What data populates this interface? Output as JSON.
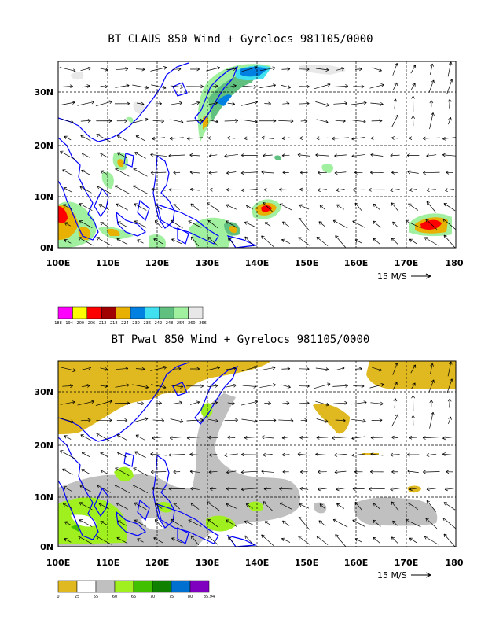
{
  "panel1": {
    "title": "BT CLAUS 850 Wind + Gyrelocs 981105/0000",
    "lat_labels": [
      "30N",
      "20N",
      "10N",
      "0N"
    ],
    "lon_labels": [
      "100E",
      "110E",
      "120E",
      "130E",
      "140E",
      "150E",
      "160E",
      "170E",
      "180"
    ],
    "ref_vector": "15 M/S",
    "colorbar": {
      "labels": [
        "188",
        "194",
        "200",
        "206",
        "212",
        "218",
        "224",
        "230",
        "236",
        "242",
        "248",
        "254",
        "260",
        "266"
      ],
      "colors": [
        "#ff00ff",
        "#ffff00",
        "#ff0000",
        "#a00000",
        "#e8b000",
        "#0080e0",
        "#40e0f0",
        "#60c080",
        "#a0f0a0",
        "#e8e8e8"
      ]
    }
  },
  "panel2": {
    "title": "BT Pwat 850 Wind + Gyrelocs 981105/0000",
    "lat_labels": [
      "30N",
      "20N",
      "10N",
      "0N"
    ],
    "lon_labels": [
      "100E",
      "110E",
      "120E",
      "130E",
      "140E",
      "150E",
      "160E",
      "170E",
      "180"
    ],
    "ref_vector": "15 M/S",
    "colorbar": {
      "labels": [
        "0",
        "25",
        "55",
        "60",
        "65",
        "70",
        "75",
        "80",
        "85.94"
      ],
      "colors": [
        "#e0b820",
        "#ffffff",
        "#c0c0c0",
        "#a0f020",
        "#40c000",
        "#108000",
        "#0070d0",
        "#8000c0"
      ]
    }
  },
  "colors": {
    "coast": "#0000ff",
    "arrow": "#000000"
  }
}
